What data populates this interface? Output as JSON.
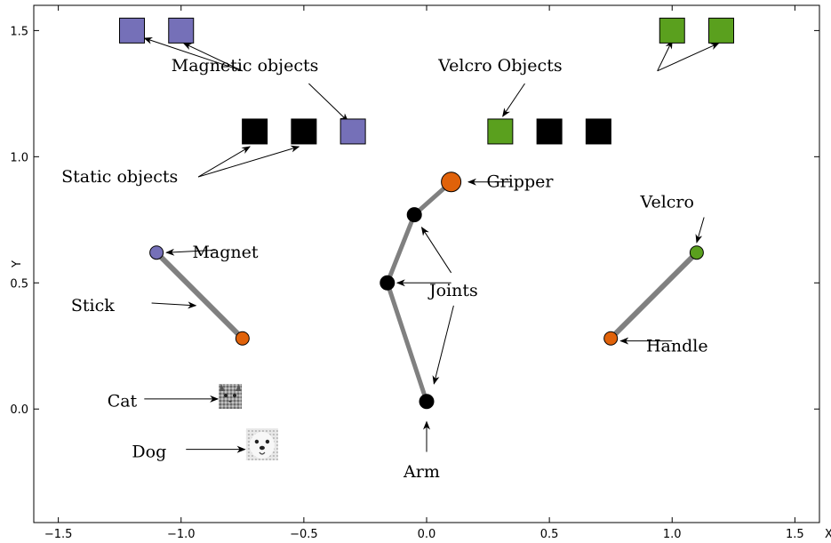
{
  "chart_data": {
    "type": "diagram",
    "xlabel": "X",
    "ylabel": "Y",
    "xlim": [
      -1.6,
      1.6
    ],
    "ylim": [
      -0.45,
      1.6
    ],
    "xticks": [
      "−1.5",
      "−1.0",
      "−0.5",
      "0.0",
      "0.5",
      "1.0",
      "1.5"
    ],
    "xtick_values": [
      -1.5,
      -1.0,
      -0.5,
      0.0,
      0.5,
      1.0,
      1.5
    ],
    "yticks": [
      "0.0",
      "0.5",
      "1.0",
      "1.5"
    ],
    "ytick_values": [
      0.0,
      0.5,
      1.0,
      1.5
    ],
    "colors": {
      "magnetic": "#7570b8",
      "velcro": "#5aa01e",
      "static": "#000000",
      "orange": "#e0620a",
      "link": "#808080"
    },
    "objects": [
      {
        "type": "magnetic",
        "x": -1.2,
        "y": 1.5
      },
      {
        "type": "magnetic",
        "x": -1.0,
        "y": 1.5
      },
      {
        "type": "static",
        "x": -0.7,
        "y": 1.1
      },
      {
        "type": "static",
        "x": -0.5,
        "y": 1.1
      },
      {
        "type": "magnetic",
        "x": -0.3,
        "y": 1.1
      },
      {
        "type": "velcro",
        "x": 0.3,
        "y": 1.1
      },
      {
        "type": "static",
        "x": 0.5,
        "y": 1.1
      },
      {
        "type": "static",
        "x": 0.7,
        "y": 1.1
      },
      {
        "type": "velcro",
        "x": 1.0,
        "y": 1.5
      },
      {
        "type": "velcro",
        "x": 1.2,
        "y": 1.5
      }
    ],
    "arm": [
      {
        "x": 0.0,
        "y": 0.03
      },
      {
        "x": -0.16,
        "y": 0.5
      },
      {
        "x": -0.05,
        "y": 0.77
      },
      {
        "x": 0.1,
        "y": 0.9
      }
    ],
    "magnet_stick": {
      "start": {
        "x": -1.1,
        "y": 0.62
      },
      "end": {
        "x": -0.75,
        "y": 0.28
      }
    },
    "velcro_stick": {
      "start": {
        "x": 1.1,
        "y": 0.62
      },
      "end": {
        "x": 0.75,
        "y": 0.28
      }
    },
    "icons": [
      {
        "name": "cat-icon",
        "x": -0.8,
        "y": 0.05
      },
      {
        "name": "dog-icon",
        "x": -0.67,
        "y": -0.14
      }
    ],
    "annotations": [
      {
        "text": "Magnetic objects",
        "x": -0.74,
        "y": 1.36
      },
      {
        "text": "Velcro Objects",
        "x": 0.3,
        "y": 1.36
      },
      {
        "text": "Static objects",
        "x": -1.25,
        "y": 0.92
      },
      {
        "text": "Gripper",
        "x": 0.38,
        "y": 0.9
      },
      {
        "text": "Velcro",
        "x": 0.98,
        "y": 0.82
      },
      {
        "text": "Magnet",
        "x": -0.82,
        "y": 0.62
      },
      {
        "text": "Joints",
        "x": 0.11,
        "y": 0.47
      },
      {
        "text": "Stick",
        "x": -1.36,
        "y": 0.41
      },
      {
        "text": "Handle",
        "x": 1.02,
        "y": 0.25
      },
      {
        "text": "Cat",
        "x": -1.24,
        "y": 0.03
      },
      {
        "text": "Dog",
        "x": -1.13,
        "y": -0.17
      },
      {
        "text": "Arm",
        "x": -0.02,
        "y": -0.25
      }
    ],
    "arrows": [
      {
        "x1": -0.75,
        "y1": 1.34,
        "x2": -1.15,
        "y2": 1.47
      },
      {
        "x1": -0.75,
        "y1": 1.34,
        "x2": -0.99,
        "y2": 1.45
      },
      {
        "x1": -0.48,
        "y1": 1.29,
        "x2": -0.32,
        "y2": 1.14
      },
      {
        "x1": 0.94,
        "y1": 1.34,
        "x2": 1.0,
        "y2": 1.46
      },
      {
        "x1": 0.94,
        "y1": 1.34,
        "x2": 1.19,
        "y2": 1.45
      },
      {
        "x1": 0.4,
        "y1": 1.29,
        "x2": 0.31,
        "y2": 1.16
      },
      {
        "x1": -0.93,
        "y1": 0.92,
        "x2": -0.72,
        "y2": 1.04
      },
      {
        "x1": -0.93,
        "y1": 0.92,
        "x2": -0.52,
        "y2": 1.04
      },
      {
        "x1": 0.34,
        "y1": 0.9,
        "x2": 0.17,
        "y2": 0.9
      },
      {
        "x1": 1.13,
        "y1": 0.76,
        "x2": 1.1,
        "y2": 0.66
      },
      {
        "x1": -0.86,
        "y1": 0.63,
        "x2": -1.06,
        "y2": 0.62
      },
      {
        "x1": 0.1,
        "y1": 0.5,
        "x2": -0.12,
        "y2": 0.5
      },
      {
        "x1": 0.1,
        "y1": 0.54,
        "x2": -0.02,
        "y2": 0.72
      },
      {
        "x1": 0.11,
        "y1": 0.41,
        "x2": 0.03,
        "y2": 0.1
      },
      {
        "x1": -1.12,
        "y1": 0.42,
        "x2": -0.94,
        "y2": 0.41
      },
      {
        "x1": 1.0,
        "y1": 0.27,
        "x2": 0.79,
        "y2": 0.27
      },
      {
        "x1": -1.15,
        "y1": 0.04,
        "x2": -0.85,
        "y2": 0.04
      },
      {
        "x1": -0.98,
        "y1": -0.16,
        "x2": -0.74,
        "y2": -0.16
      },
      {
        "x1": 0.0,
        "y1": -0.17,
        "x2": 0.0,
        "y2": -0.05
      }
    ]
  }
}
